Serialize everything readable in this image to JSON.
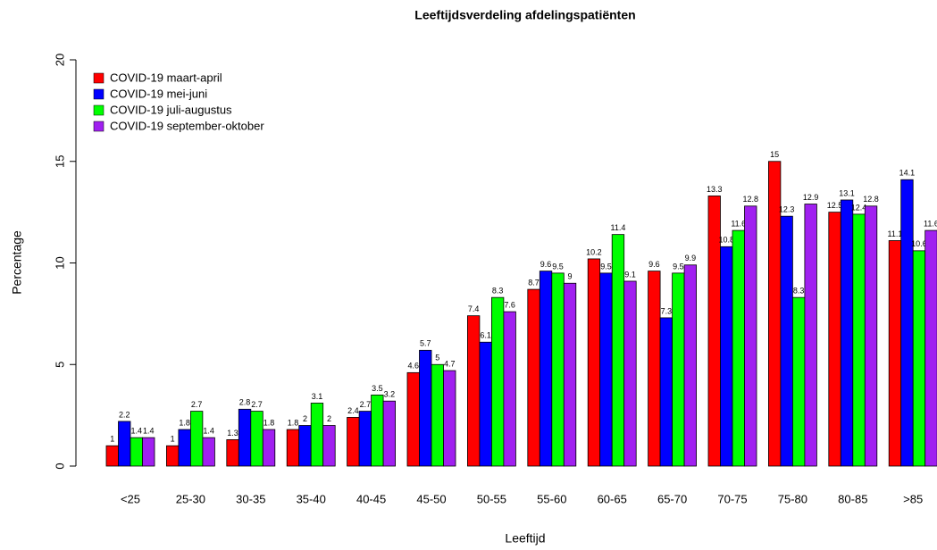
{
  "chart_data": {
    "type": "bar",
    "title": "Leeftijdsverdeling afdelingspatiënten",
    "x_label": "Leeftijd",
    "y_label": "Percentage",
    "categories": [
      "<25",
      "25-30",
      "30-35",
      "35-40",
      "40-45",
      "45-50",
      "50-55",
      "55-60",
      "60-65",
      "65-70",
      "70-75",
      "75-80",
      "80-85",
      ">85"
    ],
    "series": [
      {
        "name": "COVID-19 maart-april",
        "color": "#ff0000",
        "values": [
          1,
          1,
          1.3,
          1.8,
          2.4,
          4.6,
          7.4,
          8.7,
          10.2,
          9.6,
          13.3,
          15,
          12.5,
          11.1
        ]
      },
      {
        "name": "COVID-19 mei-juni",
        "color": "#0000ff",
        "values": [
          2.2,
          1.8,
          2.8,
          2,
          2.7,
          5.7,
          6.1,
          9.6,
          9.5,
          7.3,
          10.8,
          12.3,
          13.1,
          14.1
        ]
      },
      {
        "name": "COVID-19 juli-augustus",
        "color": "#00ff00",
        "values": [
          1.4,
          2.7,
          2.7,
          3.1,
          3.5,
          5,
          8.3,
          9.5,
          11.4,
          9.5,
          11.6,
          8.3,
          12.4,
          10.6
        ]
      },
      {
        "name": "COVID-19 september-oktober",
        "color": "#a020f0",
        "values": [
          1.4,
          1.4,
          1.8,
          2,
          3.2,
          4.7,
          7.6,
          9,
          9.1,
          9.9,
          12.8,
          12.9,
          12.8,
          11.6
        ]
      }
    ],
    "ylim": [
      0,
      20
    ],
    "yticks": [
      0,
      5,
      10,
      15,
      20
    ],
    "legend": "top-left"
  }
}
